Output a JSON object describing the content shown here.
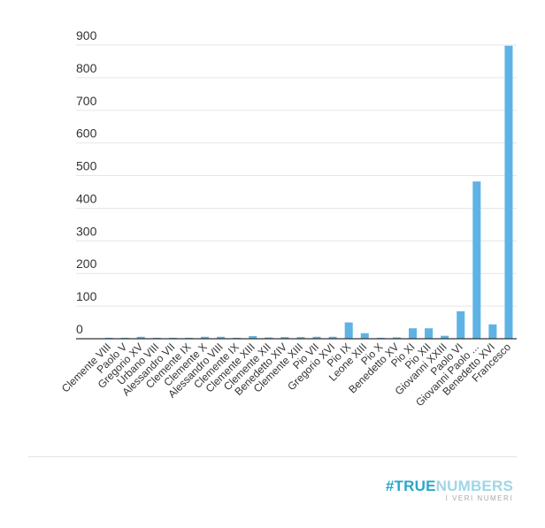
{
  "chart_data": {
    "type": "bar",
    "title": "",
    "xlabel": "",
    "ylabel": "",
    "ylim": [
      0,
      900
    ],
    "yticks": [
      0,
      100,
      200,
      300,
      400,
      500,
      600,
      700,
      800,
      900
    ],
    "grid": true,
    "color": "#5eb3e4",
    "categories": [
      "Clemente VIII",
      "Paolo V",
      "Gregorio XV",
      "Urbano VIII",
      "Alessandro VII",
      "Clemente IX",
      "Clemente X",
      "Alessandro VIII",
      "Clemente IX",
      "Clemente XIII",
      "Clemente XII",
      "Benedetto XIV",
      "Clemente XIII",
      "Pio VII",
      "Gregorio XVI",
      "Pio IX",
      "Leone XIII",
      "Pio X",
      "Benedetto XV",
      "Pio XI",
      "Pio XII",
      "Giovanni XXIII",
      "Paolo VI",
      "Giovanni Paolo ...",
      "Benedetto XVI",
      "Francesco"
    ],
    "values": [
      3,
      3,
      6,
      3,
      3,
      3,
      6,
      6,
      3,
      8,
      4,
      5,
      5,
      6,
      6,
      50,
      17,
      3,
      4,
      32,
      32,
      9,
      84,
      482,
      44,
      898
    ]
  },
  "logo": {
    "part1": "#TRUE",
    "part2": "NUMBERS",
    "tagline": "I VERI NUMERI"
  }
}
